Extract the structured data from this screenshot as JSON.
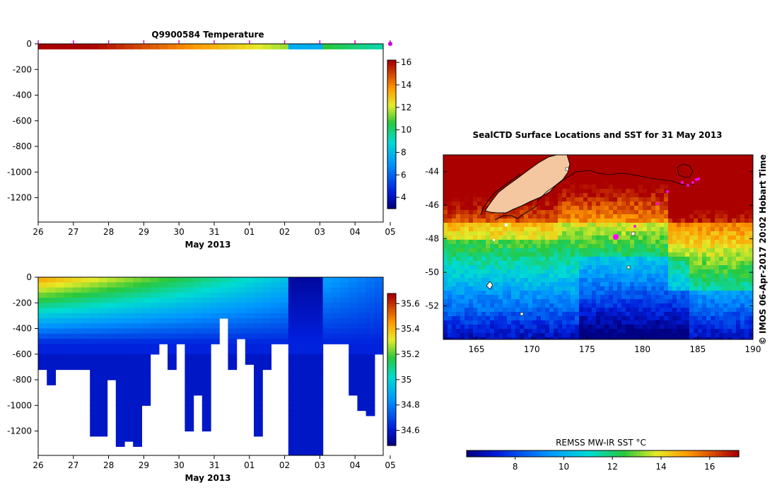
{
  "figure": {
    "side_label": "© IMOS 06-Apr-2017 20:02 Hobart Time"
  },
  "chart_data": [
    {
      "type": "heatmap",
      "id": "temp_section",
      "title": "Q9900584  Temperature",
      "xlabel": "May 2013",
      "x_ticks": [
        "26",
        "27",
        "28",
        "29",
        "30",
        "31",
        "01",
        "02",
        "03",
        "04",
        "05"
      ],
      "y_ticks": [
        0,
        -200,
        -400,
        -600,
        -800,
        -1000,
        -1200
      ],
      "ylim": [
        -1390,
        0
      ],
      "colorbar_ticks": [
        4,
        6,
        8,
        10,
        12,
        14,
        16
      ],
      "colorbar_range": [
        3,
        16.2
      ],
      "profile_markers_on_top": true
    },
    {
      "type": "heatmap",
      "id": "sal_section",
      "title": "",
      "xlabel": "May 2013",
      "x_ticks": [
        "26",
        "27",
        "28",
        "29",
        "30",
        "31",
        "01",
        "02",
        "03",
        "04",
        "05"
      ],
      "y_ticks": [
        0,
        -200,
        -400,
        -600,
        -800,
        -1000,
        -1200
      ],
      "ylim": [
        -1390,
        0
      ],
      "colorbar_ticks": [
        "34.6",
        "34.8",
        "35",
        "35.2",
        "35.4",
        "35.6"
      ],
      "colorbar_range": [
        34.48,
        35.68
      ]
    },
    {
      "type": "heatmap",
      "id": "sst_map",
      "title": "SealCTD Surface Locations and SST for 31 May 2013",
      "x_ticks": [
        "165",
        "170",
        "175",
        "180",
        "185",
        "190"
      ],
      "y_ticks": [
        "-44",
        "-46",
        "-48",
        "-50",
        "-52"
      ],
      "xlim": [
        162,
        190
      ],
      "ylim": [
        -54,
        -43
      ],
      "colorbar_label": "REMSS MW-IR SST °C",
      "colorbar_ticks": [
        "8",
        "10",
        "12",
        "14",
        "16"
      ],
      "colorbar_range": [
        6,
        17.2
      ],
      "land_color": "#f4c7a0"
    }
  ]
}
